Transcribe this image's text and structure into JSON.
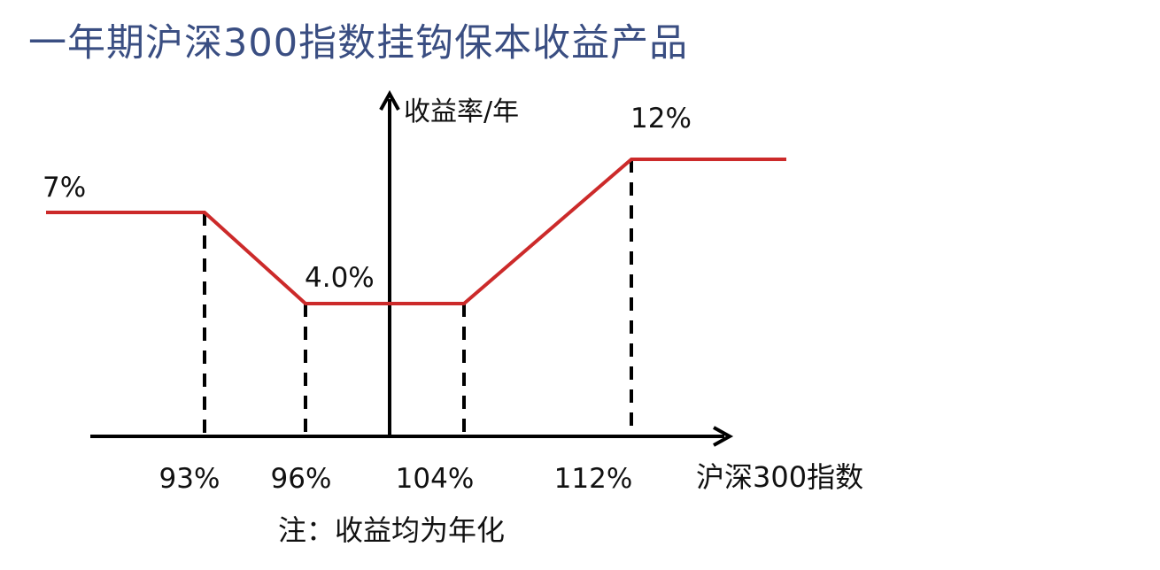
{
  "title": "一年期沪深300指数挂钩保本收益产品",
  "footnote": "注：收益均为年化",
  "colors": {
    "title": "#3a4e82",
    "payoff_line": "#cc2a2a",
    "axes": "#000000"
  },
  "chart_data": {
    "type": "line",
    "xlabel": "沪深300指数",
    "ylabel": "收益率/年",
    "x_ticks": [
      "93%",
      "96%",
      "104%",
      "112%"
    ],
    "series": [
      {
        "x": [
          "",
          "93%",
          "96%",
          "104%",
          "112%",
          ""
        ],
        "values": [
          7,
          7,
          4,
          4,
          12,
          12
        ]
      }
    ],
    "data_labels": {
      "left_flat": "7%",
      "middle_flat": "4.0%",
      "right_flat": "12%"
    },
    "grid": false
  }
}
